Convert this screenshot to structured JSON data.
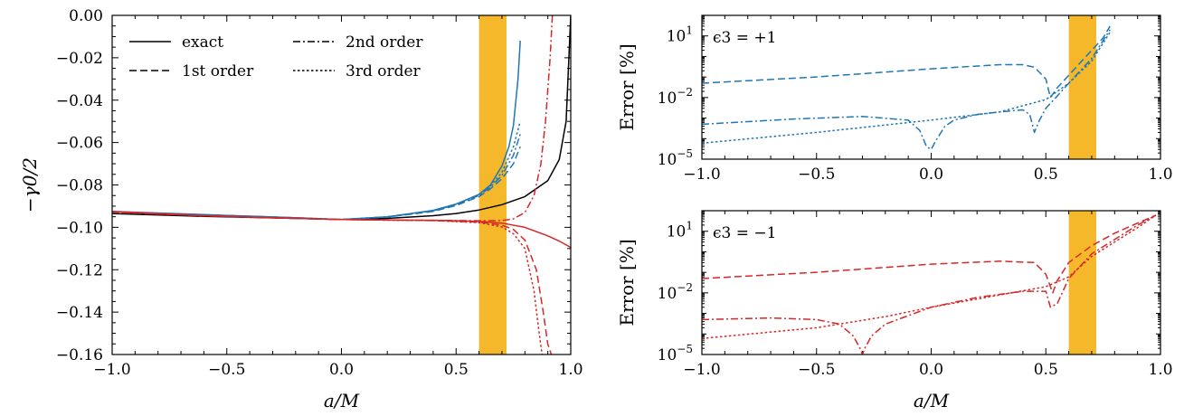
{
  "colors": {
    "exact": "#000000",
    "positive": "#1f77b4",
    "negative": "#d62728",
    "band": "#f4b82a"
  },
  "chart_data": [
    {
      "type": "line",
      "xlabel": "a/M",
      "ylabel": "−γ0/2",
      "xlim": [
        -1.0,
        1.0
      ],
      "ylim": [
        -0.16,
        0.0
      ],
      "xticks": [
        "−1.0",
        "−0.5",
        "0.0",
        "0.5",
        "1.0"
      ],
      "yticks": [
        "0.00",
        "−0.02",
        "−0.04",
        "−0.06",
        "−0.08",
        "−0.10",
        "−0.12",
        "−0.14",
        "−0.16"
      ],
      "legend": {
        "position": "top-left",
        "entries": [
          {
            "label": "exact",
            "style": "solid"
          },
          {
            "label": "2nd order",
            "style": "dashdot"
          },
          {
            "label": "1st order",
            "style": "dashed"
          },
          {
            "label": "3rd order",
            "style": "dotted"
          }
        ]
      },
      "band": {
        "x": [
          0.6,
          0.72
        ]
      },
      "series": [
        {
          "group": "exact",
          "style": "solid",
          "color": "#000000",
          "x": [
            -1.0,
            -0.6,
            -0.2,
            0.0,
            0.2,
            0.4,
            0.5,
            0.6,
            0.7,
            0.8,
            0.9,
            0.95,
            0.98,
            1.0
          ],
          "y": [
            -0.0935,
            -0.0948,
            -0.0958,
            -0.0963,
            -0.0958,
            -0.0945,
            -0.0935,
            -0.0918,
            -0.0893,
            -0.0855,
            -0.078,
            -0.068,
            -0.05,
            0.0
          ]
        },
        {
          "group": "positive",
          "style": "solid",
          "color": "#1f77b4",
          "x": [
            -1.0,
            -0.6,
            -0.2,
            0.0,
            0.2,
            0.4,
            0.5,
            0.6,
            0.65,
            0.7,
            0.73,
            0.75,
            0.77,
            0.78
          ],
          "y": [
            -0.0925,
            -0.094,
            -0.0955,
            -0.0963,
            -0.095,
            -0.092,
            -0.089,
            -0.0845,
            -0.08,
            -0.071,
            -0.062,
            -0.052,
            -0.03,
            -0.012
          ]
        },
        {
          "group": "positive",
          "style": "dashed",
          "color": "#1f77b4",
          "x": [
            -1.0,
            -0.6,
            -0.2,
            0.0,
            0.2,
            0.4,
            0.5,
            0.6,
            0.65,
            0.7,
            0.75,
            0.78
          ],
          "y": [
            -0.093,
            -0.0942,
            -0.0956,
            -0.0963,
            -0.0952,
            -0.0925,
            -0.0897,
            -0.0855,
            -0.0818,
            -0.077,
            -0.07,
            -0.062
          ]
        },
        {
          "group": "positive",
          "style": "dashdot",
          "color": "#1f77b4",
          "x": [
            -1.0,
            -0.6,
            -0.2,
            0.0,
            0.2,
            0.4,
            0.5,
            0.6,
            0.65,
            0.7,
            0.75,
            0.78
          ],
          "y": [
            -0.0928,
            -0.0941,
            -0.0955,
            -0.0963,
            -0.0951,
            -0.0922,
            -0.0893,
            -0.085,
            -0.081,
            -0.0755,
            -0.066,
            -0.056
          ]
        },
        {
          "group": "positive",
          "style": "dotted",
          "color": "#1f77b4",
          "x": [
            -1.0,
            -0.6,
            -0.2,
            0.0,
            0.2,
            0.4,
            0.5,
            0.6,
            0.65,
            0.7,
            0.75,
            0.78
          ],
          "y": [
            -0.0927,
            -0.0941,
            -0.0955,
            -0.0963,
            -0.095,
            -0.0921,
            -0.0891,
            -0.0848,
            -0.0805,
            -0.074,
            -0.062,
            -0.05
          ]
        },
        {
          "group": "negative",
          "style": "solid",
          "color": "#d62728",
          "x": [
            -1.0,
            -0.6,
            -0.2,
            0.0,
            0.2,
            0.4,
            0.6,
            0.7,
            0.8,
            0.9,
            0.95,
            1.0
          ],
          "y": [
            -0.0925,
            -0.0945,
            -0.0958,
            -0.0963,
            -0.0965,
            -0.0967,
            -0.0972,
            -0.098,
            -0.1,
            -0.104,
            -0.1065,
            -0.1095
          ]
        },
        {
          "group": "negative",
          "style": "dashed",
          "color": "#d62728",
          "x": [
            -1.0,
            -0.6,
            -0.2,
            0.0,
            0.2,
            0.4,
            0.6,
            0.7,
            0.75,
            0.8,
            0.85,
            0.88,
            0.9,
            0.915
          ],
          "y": [
            -0.0928,
            -0.0946,
            -0.0958,
            -0.0963,
            -0.0966,
            -0.0968,
            -0.0975,
            -0.099,
            -0.101,
            -0.106,
            -0.12,
            -0.14,
            -0.155,
            -0.16
          ]
        },
        {
          "group": "negative",
          "style": "dashdot",
          "color": "#d62728",
          "x": [
            -1.0,
            -0.6,
            -0.2,
            0.0,
            0.2,
            0.4,
            0.6,
            0.7,
            0.75,
            0.8,
            0.84,
            0.87,
            0.89,
            0.91,
            0.92
          ],
          "y": [
            -0.0927,
            -0.0945,
            -0.0958,
            -0.0963,
            -0.0966,
            -0.0967,
            -0.0969,
            -0.0968,
            -0.096,
            -0.093,
            -0.085,
            -0.07,
            -0.05,
            -0.02,
            0.0
          ]
        },
        {
          "group": "negative",
          "style": "dotted",
          "color": "#d62728",
          "x": [
            -1.0,
            -0.6,
            -0.2,
            0.0,
            0.2,
            0.4,
            0.6,
            0.7,
            0.75,
            0.8,
            0.84,
            0.86,
            0.875
          ],
          "y": [
            -0.0927,
            -0.0945,
            -0.0958,
            -0.0963,
            -0.0966,
            -0.0968,
            -0.0978,
            -0.0998,
            -0.103,
            -0.11,
            -0.13,
            -0.148,
            -0.16
          ]
        }
      ]
    },
    {
      "type": "line",
      "annotation": "ϵ3 = +1",
      "xlabel": "",
      "ylabel": "Error [%]",
      "xlim": [
        -1.0,
        1.0
      ],
      "ylim_log10": [
        -5,
        2
      ],
      "yscale": "log",
      "xticks": [
        "−1.0",
        "−0.5",
        "0.0",
        "0.5",
        "1.0"
      ],
      "yticks": [
        {
          "value": 10,
          "base": "10",
          "exp": "1"
        },
        {
          "value": 0.01,
          "base": "10",
          "exp": "−2"
        },
        {
          "value": 1e-05,
          "base": "10",
          "exp": "−5"
        }
      ],
      "band": {
        "x": [
          0.6,
          0.72
        ]
      },
      "series": [
        {
          "style": "dashed",
          "color": "#1f77b4",
          "x": [
            -1.0,
            -0.5,
            0.0,
            0.3,
            0.4,
            0.45,
            0.5,
            0.52,
            0.55,
            0.6,
            0.65,
            0.7,
            0.75,
            0.78
          ],
          "y": [
            0.05,
            0.1,
            0.25,
            0.4,
            0.4,
            0.3,
            0.08,
            0.01,
            0.03,
            0.12,
            0.5,
            2.0,
            8.0,
            30.0
          ]
        },
        {
          "style": "dashdot",
          "color": "#1f77b4",
          "x": [
            -1.0,
            -0.6,
            -0.3,
            -0.1,
            -0.05,
            -0.02,
            0.0,
            0.02,
            0.06,
            0.1,
            0.2,
            0.3,
            0.4,
            0.43,
            0.45,
            0.47,
            0.5,
            0.55,
            0.6,
            0.7,
            0.78
          ],
          "y": [
            0.0005,
            0.0009,
            0.0012,
            0.0008,
            0.00025,
            4e-05,
            3e-05,
            8e-05,
            0.0004,
            0.0008,
            0.0015,
            0.002,
            0.0025,
            0.0015,
            0.0002,
            0.0007,
            0.003,
            0.012,
            0.05,
            0.8,
            20.0
          ]
        },
        {
          "style": "dotted",
          "color": "#1f77b4",
          "x": [
            -1.0,
            -0.5,
            0.0,
            0.3,
            0.5,
            0.6,
            0.7,
            0.78
          ],
          "y": [
            6e-05,
            0.0002,
            0.0008,
            0.002,
            0.008,
            0.05,
            0.6,
            15.0
          ]
        }
      ]
    },
    {
      "type": "line",
      "annotation": "ϵ3 = −1",
      "xlabel": "a/M",
      "ylabel": "Error [%]",
      "xlim": [
        -1.0,
        1.0
      ],
      "ylim_log10": [
        -5,
        2
      ],
      "yscale": "log",
      "xticks": [
        "−1.0",
        "−0.5",
        "0.0",
        "0.5",
        "1.0"
      ],
      "yticks": [
        {
          "value": 10,
          "base": "10",
          "exp": "1"
        },
        {
          "value": 0.01,
          "base": "10",
          "exp": "−2"
        },
        {
          "value": 1e-05,
          "base": "10",
          "exp": "−5"
        }
      ],
      "band": {
        "x": [
          0.6,
          0.72
        ]
      },
      "series": [
        {
          "style": "dashed",
          "color": "#d62728",
          "x": [
            -1.0,
            -0.5,
            0.0,
            0.3,
            0.45,
            0.5,
            0.53,
            0.55,
            0.6,
            0.7,
            0.8,
            0.9,
            0.98
          ],
          "y": [
            0.05,
            0.1,
            0.25,
            0.35,
            0.3,
            0.08,
            0.01,
            0.04,
            0.3,
            2.0,
            8.0,
            25.0,
            60.0
          ]
        },
        {
          "style": "dashdot",
          "color": "#d62728",
          "x": [
            -1.0,
            -0.7,
            -0.5,
            -0.4,
            -0.34,
            -0.31,
            -0.3,
            -0.29,
            -0.26,
            -0.2,
            0.0,
            0.2,
            0.4,
            0.5,
            0.52,
            0.55,
            0.6,
            0.7,
            0.8,
            0.9,
            0.98
          ],
          "y": [
            0.0005,
            0.0006,
            0.0005,
            0.0003,
            8e-05,
            2e-05,
            1e-05,
            2e-05,
            8e-05,
            0.0003,
            0.002,
            0.006,
            0.012,
            0.012,
            0.002,
            0.003,
            0.05,
            0.8,
            4.0,
            20.0,
            60.0
          ]
        },
        {
          "style": "dotted",
          "color": "#d62728",
          "x": [
            -1.0,
            -0.5,
            -0.2,
            0.0,
            0.3,
            0.5,
            0.6,
            0.7,
            0.8,
            0.9,
            0.98
          ],
          "y": [
            6e-05,
            0.0002,
            0.0007,
            0.002,
            0.008,
            0.02,
            0.06,
            0.6,
            3.0,
            15.0,
            60.0
          ]
        }
      ]
    }
  ]
}
